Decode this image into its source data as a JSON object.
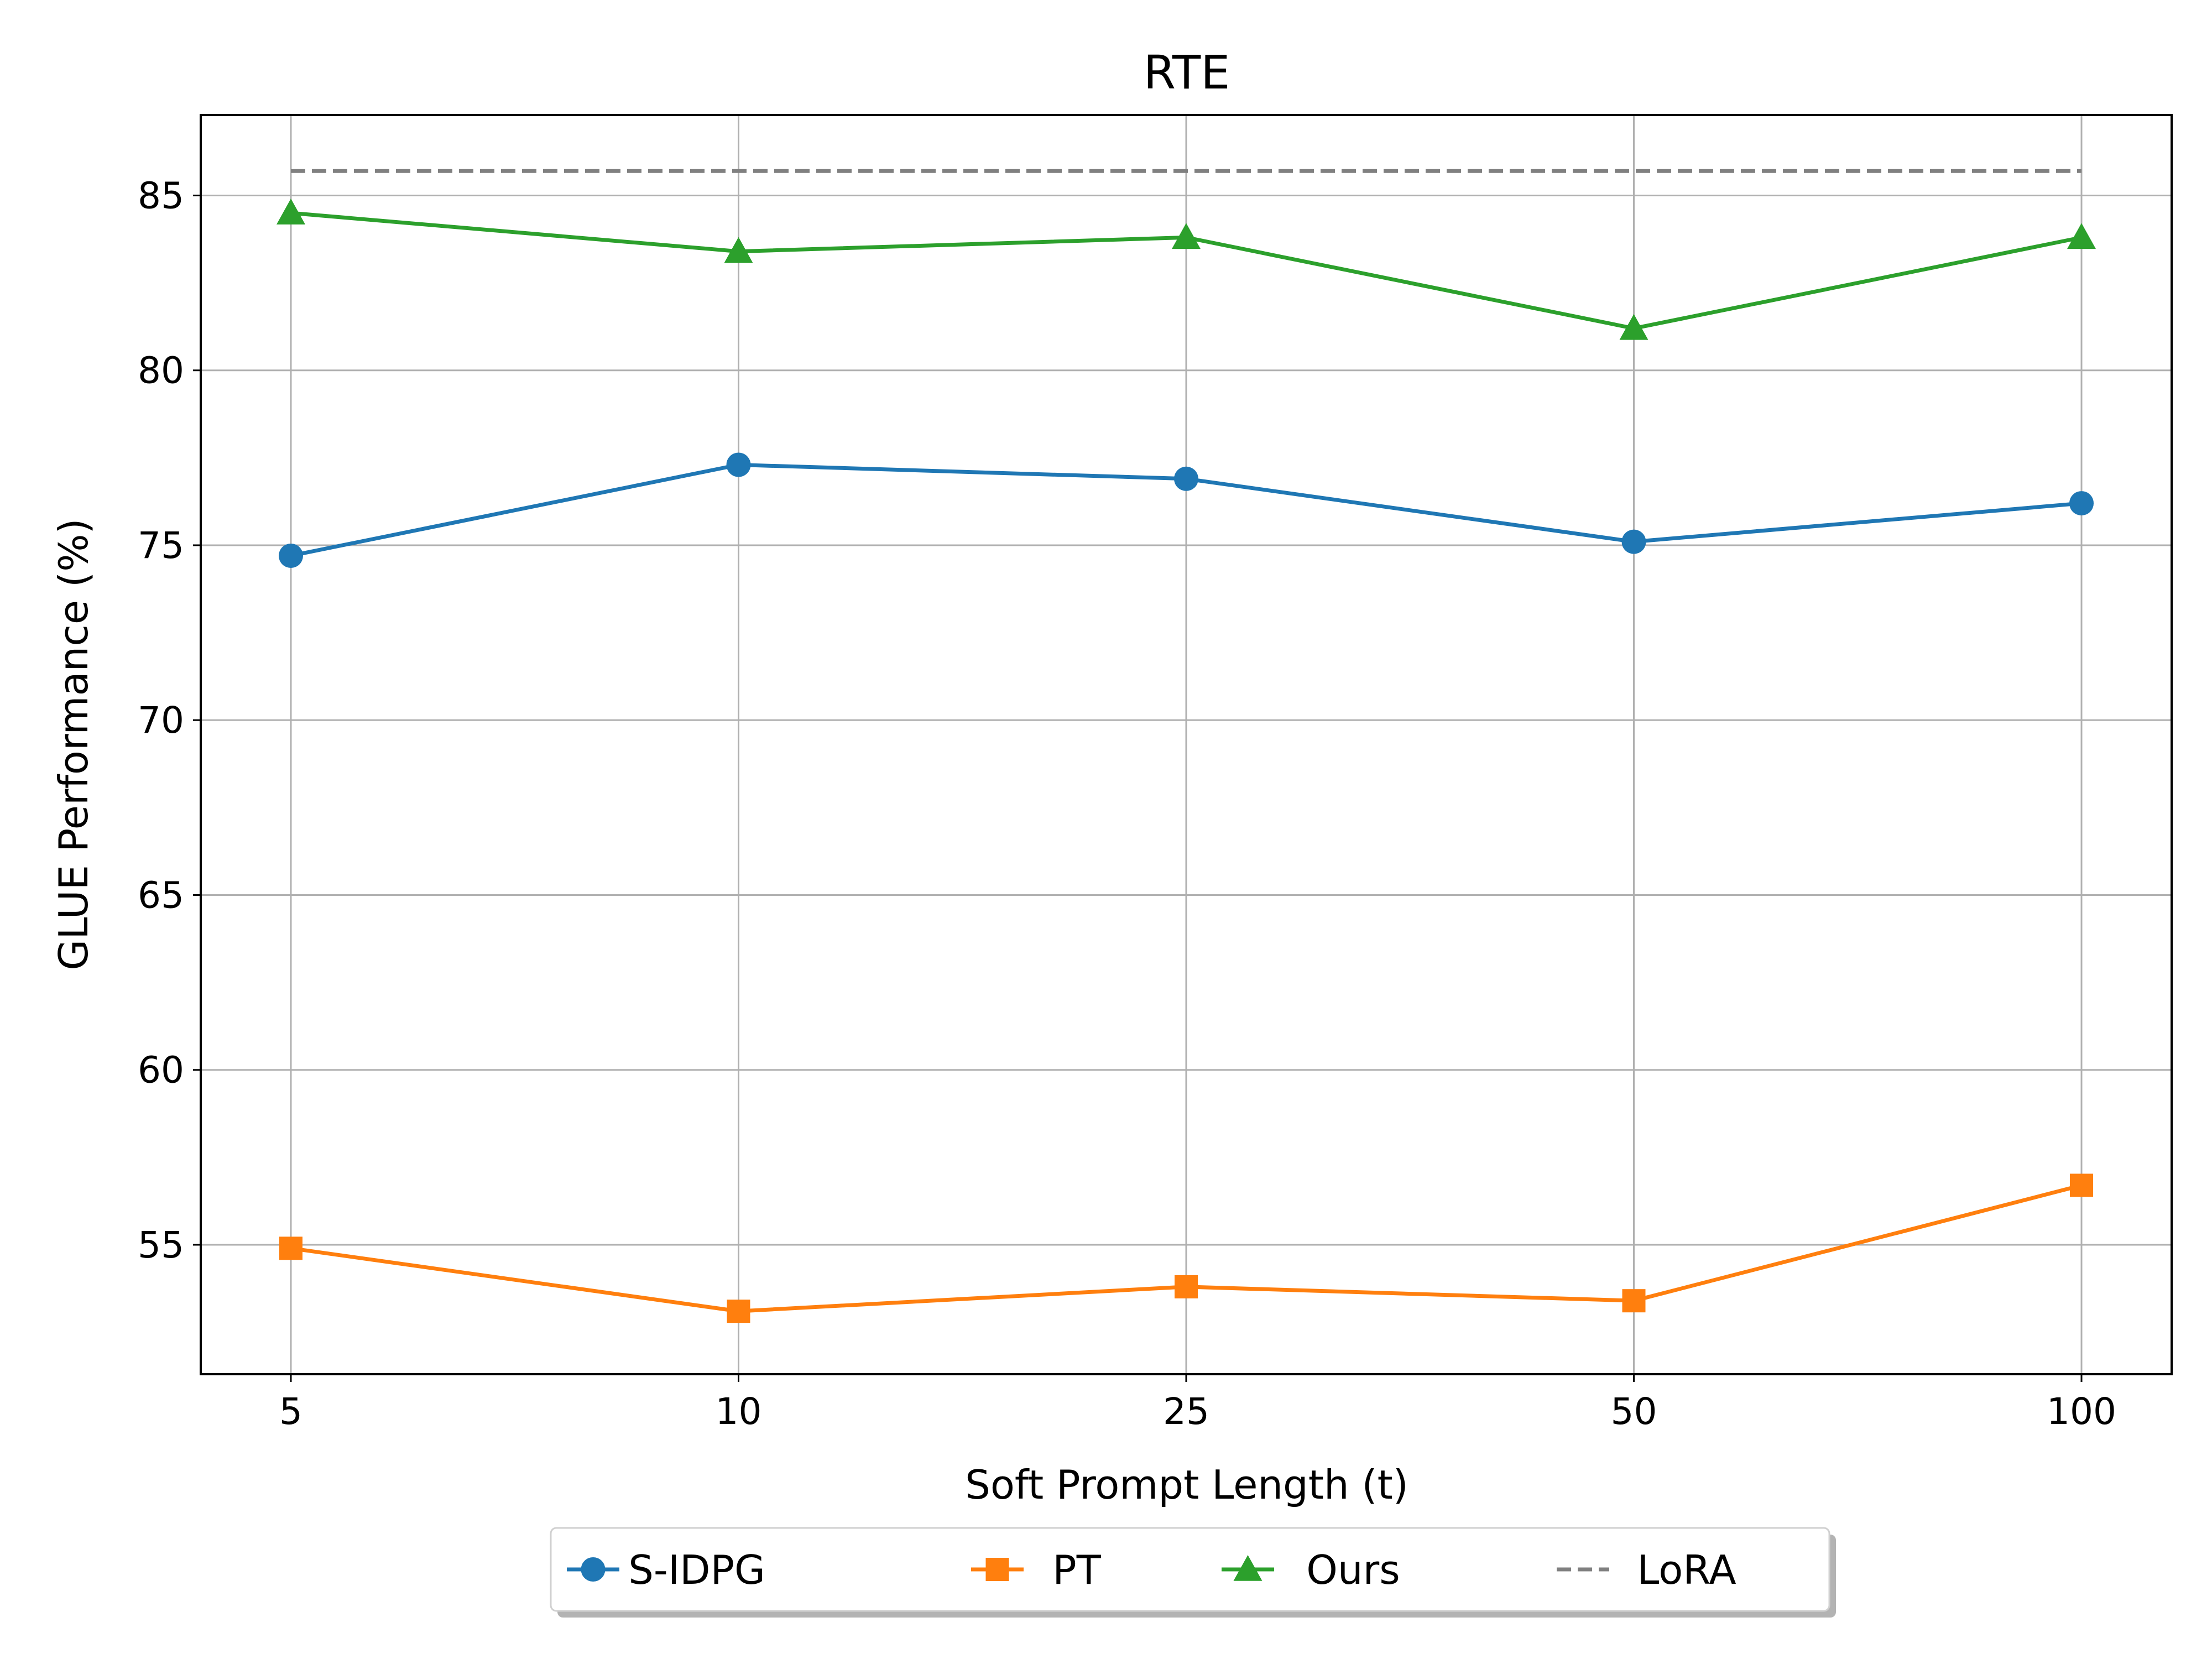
{
  "chart_data": {
    "type": "line",
    "title": "RTE",
    "xlabel": "Soft Prompt Length (t)",
    "ylabel": "GLUE Performance (%)",
    "categories": [
      "5",
      "10",
      "25",
      "50",
      "100"
    ],
    "yticks": [
      55,
      60,
      65,
      70,
      75,
      80,
      85
    ],
    "ylim": [
      51.3,
      87.3
    ],
    "grid": true,
    "legend_position": "bottom-center",
    "series": [
      {
        "name": "S-IDPG",
        "values": [
          74.7,
          77.3,
          76.9,
          75.1,
          76.2
        ],
        "color": "#1f77b4",
        "marker": "circle",
        "dashed": false
      },
      {
        "name": "PT",
        "values": [
          54.9,
          53.1,
          53.8,
          53.4,
          56.7
        ],
        "color": "#ff7f0e",
        "marker": "square",
        "dashed": false
      },
      {
        "name": "Ours",
        "values": [
          84.5,
          83.4,
          83.8,
          81.2,
          83.8
        ],
        "color": "#2ca02c",
        "marker": "triangle",
        "dashed": false
      },
      {
        "name": "LoRA",
        "values": [
          85.7,
          85.7,
          85.7,
          85.7,
          85.7
        ],
        "color": "#808080",
        "marker": "none",
        "dashed": true
      }
    ]
  }
}
